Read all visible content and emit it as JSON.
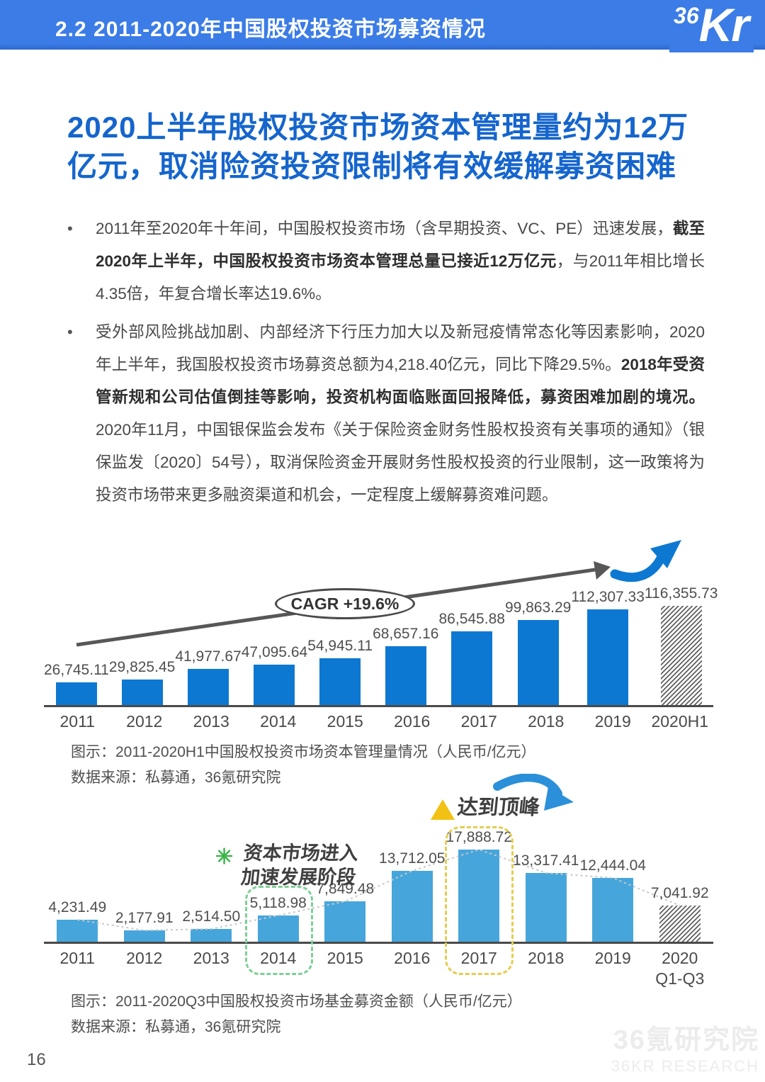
{
  "header": {
    "title": "2.2 2011-2020年中国股权投资市场募资情况",
    "logo_36": "36",
    "logo_kr": "Kr"
  },
  "heading": {
    "text": "2020上半年股权投资市场资本管理量约为12万亿元，取消险资投资限制将有效缓解募资困难"
  },
  "bullets": [
    {
      "segments": [
        {
          "text": "2011年至2020年十年间，中国股权投资市场（含早期投资、VC、PE）迅速发展，",
          "bold": false
        },
        {
          "text": "截至2020年上半年，中国股权投资市场资本管理总量已接近12万亿元",
          "bold": true
        },
        {
          "text": "，与2011年相比增长4.35倍，年复合增长率达19.6%。",
          "bold": false
        }
      ]
    },
    {
      "segments": [
        {
          "text": "受外部风险挑战加剧、内部经济下行压力加大以及新冠疫情常态化等因素影响，2020年上半年，我国股权投资市场募资总额为4,218.40亿元，同比下降29.5%。",
          "bold": false
        },
        {
          "text": "2018年受资管新规和公司估值倒挂等影响，投资机构面临账面回报降低，募资困难加剧的境况。",
          "bold": true
        },
        {
          "text": "2020年11月，中国银保监会发布《关于保险资金财务性股权投资有关事项的通知》（银保监发〔2020〕54号），取消保险资金开展财务性股权投资的行业限制，这一政策将为投资市场带来更多融资渠道和机会，一定程度上缓解募资难问题。",
          "bold": false
        }
      ]
    }
  ],
  "chart_data": [
    {
      "type": "bar",
      "title": "2011-2020H1中国股权投资市场资本管理量情况（人民币/亿元）",
      "categories": [
        "2011",
        "2012",
        "2013",
        "2014",
        "2015",
        "2016",
        "2017",
        "2018",
        "2019",
        "2020H1"
      ],
      "values": [
        26745.11,
        29825.45,
        41977.67,
        47095.64,
        54945.11,
        68657.16,
        86545.88,
        99863.29,
        112307.33,
        116355.73
      ],
      "labels": [
        "26,745.11",
        "29,825.45",
        "41,977.67",
        "47,095.64",
        "54,945.11",
        "68,657.16",
        "86,545.88",
        "99,863.29",
        "112,307.33",
        "116,355.73"
      ],
      "bar_color": "#0d78d2",
      "hatch_last": true,
      "connector": false,
      "ylim": [
        0,
        120000
      ],
      "annotations": {
        "cagr": "CAGR +19.6%"
      }
    },
    {
      "type": "bar",
      "title": "2011-2020Q3中国股权投资市场基金募资金额（人民币/亿元）",
      "categories": [
        "2011",
        "2012",
        "2013",
        "2014",
        "2015",
        "2016",
        "2017",
        "2018",
        "2019",
        [
          "2020",
          "Q1-Q3"
        ]
      ],
      "values": [
        4231.49,
        2177.91,
        2514.5,
        5118.98,
        7849.48,
        13712.05,
        17888.72,
        13317.41,
        12444.04,
        7041.92
      ],
      "labels": [
        "4,231.49",
        "2,177.91",
        "2,514.50",
        "5,118.98",
        "7,849.48",
        "13,712.05",
        "17,888.72",
        "13,317.41",
        "12,444.04",
        "7,041.92"
      ],
      "bar_color": "#46a6db",
      "hatch_last": true,
      "connector": true,
      "ylim": [
        0,
        18000
      ],
      "annotations": {
        "accel_line1": "资本市场进入",
        "accel_line2": "加速发展阶段",
        "peak": "达到顶峰"
      }
    }
  ],
  "captions": [
    {
      "line1": "图示：2011-2020H1中国股权投资市场资本管理量情况（人民币/亿元）",
      "line2": "数据来源：私募通，36氪研究院"
    },
    {
      "line1": "图示：2011-2020Q3中国股权投资市场基金募资金额（人民币/亿元）",
      "line2": "数据来源：私募通，36氪研究院"
    }
  ],
  "footer": {
    "page_number": "16",
    "watermark_cn": "36氪研究院",
    "watermark_en": "36KR RESEARCH"
  }
}
